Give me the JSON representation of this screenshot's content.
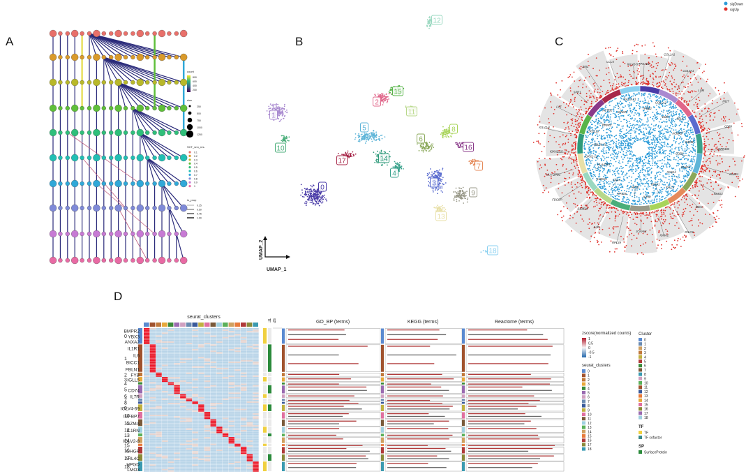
{
  "panels": {
    "a": "A",
    "b": "B",
    "c": "C",
    "d": "D"
  },
  "panel_a": {
    "legend_count_title": "count",
    "legend_count_ticks": [
      "800",
      "600",
      "400",
      "200"
    ],
    "legend_size_title": "size",
    "legend_size_ticks": [
      "250",
      "500",
      "750",
      "1000",
      "1250"
    ],
    "legend_res_title": "SCT_snn_res.",
    "legend_res_items": [
      "0.1",
      "0.2",
      "0.3",
      "0.4",
      "0.5",
      "0.6",
      "0.7",
      "0.8",
      "0.9",
      "1"
    ],
    "legend_prop_title": "in_prop",
    "legend_prop_ticks": [
      "0.25",
      "0.50",
      "0.75",
      "1.00"
    ],
    "colors": [
      "#e8706a",
      "#d99a2b",
      "#b8b82a",
      "#5fbf3a",
      "#2fbf7a",
      "#22bfb4",
      "#30a8d8",
      "#7f8ad8",
      "#c77ad4",
      "#e86aa4"
    ]
  },
  "panel_b": {
    "axis_x": "UMAP_1",
    "axis_y": "UMAP_2",
    "clusters": [
      {
        "id": "0",
        "color": "#4a3ca8"
      },
      {
        "id": "1",
        "color": "#a98ad0"
      },
      {
        "id": "2",
        "color": "#e0668a"
      },
      {
        "id": "3",
        "color": "#5a6ccf"
      },
      {
        "id": "4",
        "color": "#3aa28c"
      },
      {
        "id": "5",
        "color": "#5fb5d8"
      },
      {
        "id": "6",
        "color": "#8aa85a"
      },
      {
        "id": "7",
        "color": "#e58a5a"
      },
      {
        "id": "8",
        "color": "#a8d45a"
      },
      {
        "id": "9",
        "color": "#9a9a8a"
      },
      {
        "id": "10",
        "color": "#4aae7a"
      },
      {
        "id": "11",
        "color": "#b8d88a"
      },
      {
        "id": "12",
        "color": "#9ad8c0"
      },
      {
        "id": "13",
        "color": "#e8e0a8"
      },
      {
        "id": "14",
        "color": "#2e9a7a"
      },
      {
        "id": "15",
        "color": "#58b44a"
      },
      {
        "id": "16",
        "color": "#8a3a8a"
      },
      {
        "id": "17",
        "color": "#a8284a"
      },
      {
        "id": "18",
        "color": "#8ad0f0"
      }
    ]
  },
  "panel_c": {
    "legend": [
      {
        "label": "sigDown",
        "color": "#2c9bd8"
      },
      {
        "label": "sigUp",
        "color": "#e0302a"
      }
    ],
    "genes": [
      "TPSAB1",
      "TPSB2",
      "COL1A1",
      "COL1A2",
      "COL3A1",
      "DCN",
      "LUM",
      "SELE",
      "IFI27",
      "ACKR1",
      "CD69",
      "GZMB",
      "GPR183",
      "CD74",
      "IGHG1",
      "IGHG2",
      "IGHG3",
      "IGHG4",
      "IGKC",
      "IGLC2",
      "IGLC3",
      "IGHA1",
      "IGHA2",
      "IGHM",
      "JCHAIN",
      "MZB1",
      "RPL39",
      "RPS26",
      "IL1B",
      "CCL4",
      "S100A8",
      "S100A9",
      "FDCSP",
      "HLA-DRA",
      "HLA-DPB1",
      "IGKV1-12",
      "IGKV3-15",
      "IGLV1-51",
      "IGLV2-8",
      "CXCL13",
      "LYZ",
      "PTPRC",
      "SPP1",
      "ACTG2",
      "SKIL",
      "IGHGP",
      "CCL5",
      "IGLV3-21",
      "IGLV6-57"
    ]
  },
  "panel_d": {
    "top_label": "seurat_clusters",
    "col_go": "GO_BP (terms)",
    "col_kegg": "KEGG (terms)",
    "col_reactome": "Reactome (terms)",
    "col_tf": "TF",
    "col_sp": "SP",
    "clusters": [
      {
        "id": "0",
        "genes": [
          "BMPR2",
          "YBX3",
          "ANXA2"
        ]
      },
      {
        "id": "1",
        "genes": [
          "IL1R1",
          "IL6",
          "BICC1",
          "FBLN1"
        ]
      },
      {
        "id": "2",
        "genes": [
          "FYB"
        ]
      },
      {
        "id": "3",
        "genes": [
          "IGLL5"
        ]
      },
      {
        "id": "4",
        "genes": []
      },
      {
        "id": "5",
        "genes": [
          "CD74"
        ]
      },
      {
        "id": "6",
        "genes": [
          "IL7R"
        ]
      },
      {
        "id": "7",
        "genes": []
      },
      {
        "id": "8",
        "genes": []
      },
      {
        "id": "9",
        "genes": [
          "IGLV4-69"
        ]
      },
      {
        "id": "10",
        "genes": [
          "IGFBP7"
        ]
      },
      {
        "id": "11",
        "genes": [
          "GZMA"
        ]
      },
      {
        "id": "12",
        "genes": [
          "IL1RN"
        ]
      },
      {
        "id": "13",
        "genes": []
      },
      {
        "id": "14",
        "genes": [
          "IGLV2-8"
        ]
      },
      {
        "id": "15",
        "genes": []
      },
      {
        "id": "16",
        "genes": [
          "IGHGP"
        ]
      },
      {
        "id": "17",
        "genes": [
          "ARL4C"
        ]
      },
      {
        "id": "18",
        "genes": [
          "HPGD",
          "LMO3"
        ]
      }
    ],
    "zscore_title": "zscore(normalized counts)",
    "zscore_ticks": [
      "1",
      "0.5",
      "0",
      "-0.5",
      "-1"
    ],
    "seurat_legend_title": "seurat_clusters",
    "cluster_legend_title": "Cluster",
    "legend_ids": [
      "0",
      "1",
      "2",
      "3",
      "4",
      "5",
      "6",
      "7",
      "8",
      "9",
      "10",
      "11",
      "12",
      "13",
      "14",
      "15",
      "16",
      "17",
      "18"
    ],
    "tf_title": "TF",
    "tf_items": [
      "TF",
      "TF cofactor"
    ],
    "sp_title": "SP",
    "sp_items": [
      "SurfaceProtein"
    ]
  }
}
